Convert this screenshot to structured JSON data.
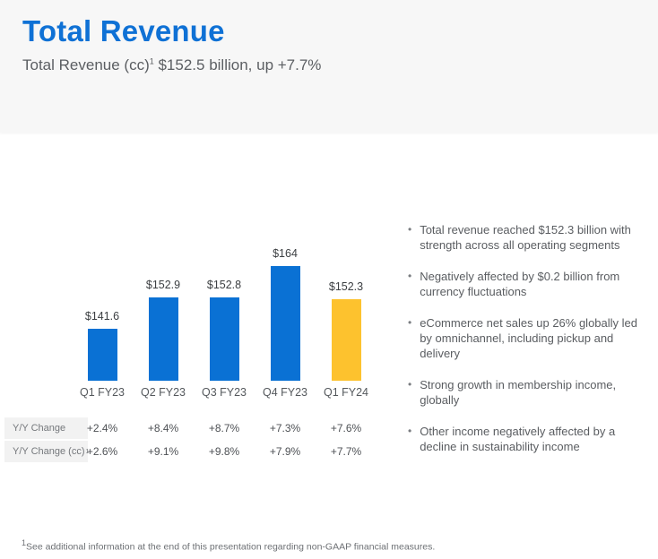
{
  "header": {
    "title": "Total Revenue",
    "subtitle_prefix": "Total Revenue (cc)",
    "subtitle_sup": "1",
    "subtitle_rest": " $152.5 billion, up +7.7%"
  },
  "chart_data": {
    "type": "bar",
    "title": "Total Revenue by quarter ($ billions)",
    "categories": [
      "Q1 FY23",
      "Q2 FY23",
      "Q3 FY23",
      "Q4 FY23",
      "Q1 FY24"
    ],
    "values": [
      141.6,
      152.9,
      152.8,
      164,
      152.3
    ],
    "value_labels": [
      "$141.6",
      "$152.9",
      "$152.8",
      "$164",
      "$152.3"
    ],
    "bar_colors": [
      "#0a71d4",
      "#0a71d4",
      "#0a71d4",
      "#0a71d4",
      "#fdc22e"
    ],
    "ylim": [
      123,
      175
    ],
    "grid": false,
    "legend": "none",
    "yy_rows": [
      {
        "label": "Y/Y Change",
        "label_sup": "",
        "values": [
          "+2.4%",
          "+8.4%",
          "+8.7%",
          "+7.3%",
          "+7.6%"
        ]
      },
      {
        "label": "Y/Y Change (cc)",
        "label_sup": "1",
        "values": [
          "+2.6%",
          "+9.1%",
          "+9.8%",
          "+7.9%",
          "+7.7%"
        ]
      }
    ]
  },
  "bullets": [
    "Total revenue reached $152.3 billion with strength across all operating segments",
    "Negatively affected by $0.2 billion from currency fluctuations",
    "eCommerce net sales up 26% globally led by omnichannel, including pickup and delivery",
    "Strong growth in membership income, globally",
    "Other income negatively affected by a decline in sustainability income"
  ],
  "footnote": {
    "sup": "1",
    "text": "See additional information at the end of this presentation regarding non-GAAP financial measures."
  },
  "colors": {
    "accent_blue": "#0f71d5",
    "bar_blue": "#0a71d4",
    "bar_yellow": "#fdc22e",
    "header_bg": "#f7f7f7"
  }
}
